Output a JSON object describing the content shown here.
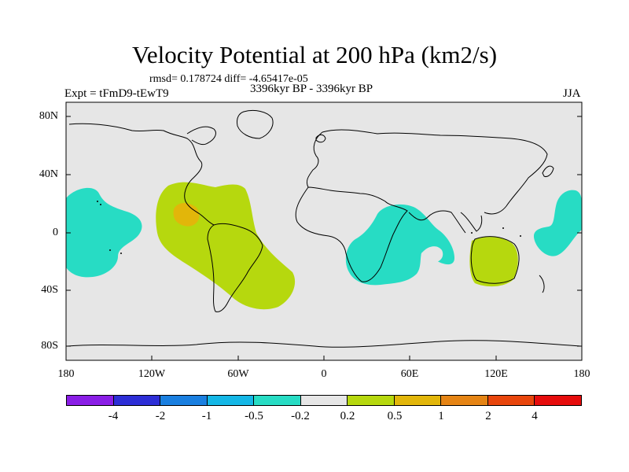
{
  "title": "Velocity Potential at 200 hPa (km2/s)",
  "stats": "rmsd= 0.178724  diff= -4.65417e-05",
  "experiment": "Expt = tFmD9-tEwT9",
  "period": "3396kyr BP - 3396kyr BP",
  "season": "JJA",
  "y_axis_labels": [
    "80N",
    "40N",
    "0",
    "40S",
    "80S"
  ],
  "x_axis_labels": [
    "180",
    "120W",
    "60W",
    "0",
    "60E",
    "120E",
    "180"
  ],
  "colorbar": {
    "colors": [
      "#8a1ee6",
      "#2d2ed6",
      "#1a7fe0",
      "#14b7e6",
      "#27dcc4",
      "#e6e6e6",
      "#b6d80e",
      "#e2b60a",
      "#e58414",
      "#e8460c",
      "#e60c0c"
    ],
    "labels": [
      "-4",
      "-2",
      "-1",
      "-0.5",
      "-0.2",
      "0.2",
      "0.5",
      "1",
      "2",
      "4"
    ]
  },
  "colors": {
    "map_background": "#e6e6e6",
    "negative_anomaly": "#27dcc4",
    "positive_weak": "#b6d80e",
    "positive_moderate": "#e2b60a"
  }
}
